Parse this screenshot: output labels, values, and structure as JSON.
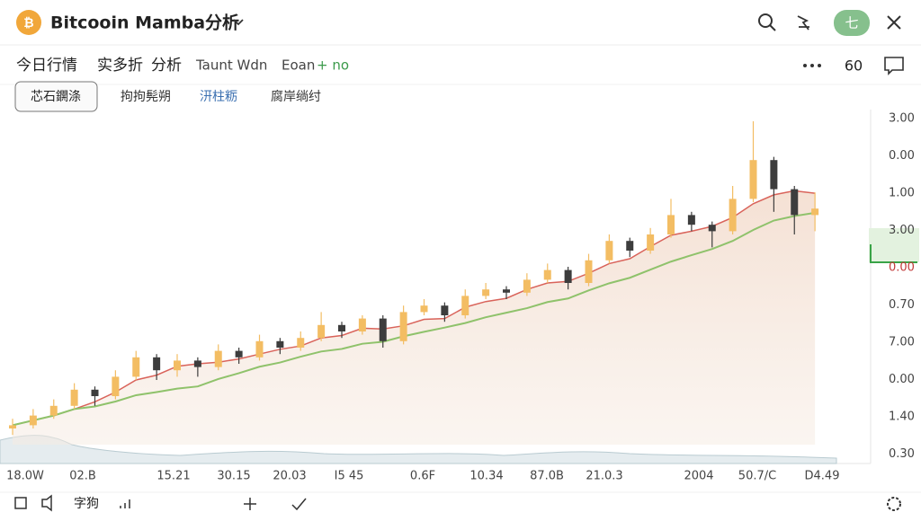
{
  "header": {
    "title": "Bitcooin Mamba分析",
    "badge": "七"
  },
  "toolbar": {
    "items": [
      "今日行情",
      "实多折",
      "分析",
      "Taunt Wdn",
      "Eoan",
      "+ no"
    ],
    "interval": "60"
  },
  "tabs": [
    "芯石鐦涤",
    "拘拘髡朔",
    "汧柱粝",
    "腐岸绱纣"
  ],
  "price_labels": [
    "3.00",
    "0.00",
    "1.00",
    "3.00",
    "0.00",
    "0.70",
    "7.00",
    "0.00",
    "1.40",
    "0.30"
  ],
  "time_labels": [
    "18.0W",
    "02.B",
    "15.21",
    "30.15",
    "20.03",
    "I5 45",
    "0.6F",
    "10.34",
    "87.0B",
    "21.0.3",
    "2004",
    "50.7/C",
    "D4.49"
  ],
  "footer": {
    "label": "字狗"
  },
  "chart_data": {
    "type": "candlestick",
    "ylim": [
      0,
      100
    ],
    "up_color": "#f3bd63",
    "down_color": "#3d3d3d",
    "candles": [
      [
        5,
        8,
        3,
        6
      ],
      [
        6,
        11,
        5,
        9
      ],
      [
        9,
        14,
        8,
        12
      ],
      [
        12,
        19,
        11,
        17
      ],
      [
        17,
        18,
        12,
        15
      ],
      [
        15,
        23,
        14,
        21
      ],
      [
        21,
        29,
        20,
        27
      ],
      [
        27,
        28,
        20,
        23
      ],
      [
        23,
        28,
        21,
        26
      ],
      [
        26,
        27,
        21,
        24
      ],
      [
        24,
        31,
        23,
        29
      ],
      [
        29,
        30,
        25,
        27
      ],
      [
        27,
        34,
        26,
        32
      ],
      [
        32,
        33,
        28,
        30
      ],
      [
        30,
        35,
        29,
        33
      ],
      [
        33,
        41,
        32,
        37
      ],
      [
        37,
        38,
        33,
        35
      ],
      [
        35,
        40,
        34,
        39
      ],
      [
        39,
        40,
        30,
        32
      ],
      [
        32,
        43,
        31,
        41
      ],
      [
        41,
        45,
        40,
        43
      ],
      [
        43,
        44,
        38,
        40
      ],
      [
        40,
        48,
        39,
        46
      ],
      [
        46,
        50,
        45,
        48
      ],
      [
        48,
        49,
        45,
        47
      ],
      [
        47,
        53,
        46,
        51
      ],
      [
        51,
        56,
        50,
        54
      ],
      [
        54,
        55,
        48,
        50
      ],
      [
        50,
        59,
        49,
        57
      ],
      [
        57,
        65,
        56,
        63
      ],
      [
        63,
        64,
        58,
        60
      ],
      [
        60,
        67,
        59,
        65
      ],
      [
        65,
        76,
        64,
        71
      ],
      [
        71,
        72,
        66,
        68
      ],
      [
        68,
        69,
        61,
        66
      ],
      [
        66,
        80,
        65,
        76
      ],
      [
        76,
        100,
        75,
        88
      ],
      [
        88,
        89,
        72,
        79
      ],
      [
        79,
        80,
        65,
        71
      ],
      [
        71,
        78,
        66,
        73
      ]
    ]
  }
}
